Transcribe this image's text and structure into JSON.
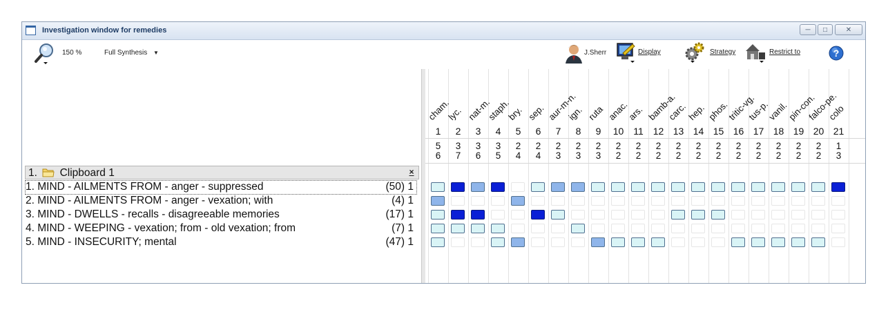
{
  "window": {
    "title": "Investigation window for remedies"
  },
  "title_buttons": [
    "minimize",
    "maximize",
    "close"
  ],
  "toolbar": {
    "zoom": "150 %",
    "view_mode": "Full Synthesis",
    "author": "J.Sherr",
    "display": "Display",
    "strategy": "Strategy",
    "restrict": "Restrict to"
  },
  "clipboard": {
    "title": "Clipboard 1",
    "index": "1.",
    "close": "×"
  },
  "rubrics": [
    {
      "label": "1. MIND - AILMENTS FROM - anger - suppressed",
      "count": "(50) 1"
    },
    {
      "label": "2. MIND - AILMENTS FROM - anger - vexation; with",
      "count": "(4) 1"
    },
    {
      "label": "3. MIND - DWELLS - recalls - disagreeable memories",
      "count": "(17) 1"
    },
    {
      "label": "4. MIND - WEEPING - vexation; from - old vexation; from",
      "count": "(7) 1"
    },
    {
      "label": "5. MIND - INSECURITY; mental",
      "count": "(47) 1"
    }
  ],
  "remedies": [
    {
      "name": "cham.",
      "num": "1",
      "score": "5",
      "rubrics": "6"
    },
    {
      "name": "lyc.",
      "num": "2",
      "score": "3",
      "rubrics": "7"
    },
    {
      "name": "nat-m.",
      "num": "3",
      "score": "3",
      "rubrics": "6"
    },
    {
      "name": "staph.",
      "num": "4",
      "score": "3",
      "rubrics": "5"
    },
    {
      "name": "bry.",
      "num": "5",
      "score": "2",
      "rubrics": "4"
    },
    {
      "name": "sep.",
      "num": "6",
      "score": "2",
      "rubrics": "4"
    },
    {
      "name": "aur-m-n.",
      "num": "7",
      "score": "2",
      "rubrics": "3"
    },
    {
      "name": "ign.",
      "num": "8",
      "score": "2",
      "rubrics": "3"
    },
    {
      "name": "ruta",
      "num": "9",
      "score": "2",
      "rubrics": "3"
    },
    {
      "name": "anac.",
      "num": "10",
      "score": "2",
      "rubrics": "2"
    },
    {
      "name": "ars.",
      "num": "11",
      "score": "2",
      "rubrics": "2"
    },
    {
      "name": "bamb-a.",
      "num": "12",
      "score": "2",
      "rubrics": "2"
    },
    {
      "name": "carc.",
      "num": "13",
      "score": "2",
      "rubrics": "2"
    },
    {
      "name": "hep.",
      "num": "14",
      "score": "2",
      "rubrics": "2"
    },
    {
      "name": "phos.",
      "num": "15",
      "score": "2",
      "rubrics": "2"
    },
    {
      "name": "tritic-vg.",
      "num": "16",
      "score": "2",
      "rubrics": "2"
    },
    {
      "name": "tus-p.",
      "num": "17",
      "score": "2",
      "rubrics": "2"
    },
    {
      "name": "vanil.",
      "num": "18",
      "score": "2",
      "rubrics": "2"
    },
    {
      "name": "pin-con.",
      "num": "19",
      "score": "2",
      "rubrics": "2"
    },
    {
      "name": "falco-pe.",
      "num": "20",
      "score": "2",
      "rubrics": "2"
    },
    {
      "name": "colo",
      "num": "21",
      "score": "1",
      "rubrics": "3"
    }
  ],
  "grades": [
    [
      1,
      3,
      2,
      3,
      0,
      1,
      2,
      2,
      1,
      1,
      1,
      1,
      1,
      1,
      1,
      1,
      1,
      1,
      1,
      1,
      3
    ],
    [
      2,
      0,
      0,
      0,
      2,
      0,
      0,
      0,
      0,
      0,
      0,
      0,
      0,
      0,
      0,
      0,
      0,
      0,
      0,
      0,
      0
    ],
    [
      1,
      3,
      3,
      0,
      0,
      3,
      1,
      0,
      0,
      0,
      0,
      0,
      1,
      1,
      1,
      0,
      0,
      0,
      0,
      0,
      0
    ],
    [
      1,
      1,
      1,
      1,
      0,
      0,
      0,
      1,
      0,
      0,
      0,
      0,
      0,
      0,
      0,
      0,
      0,
      0,
      0,
      0,
      0
    ],
    [
      1,
      0,
      0,
      1,
      2,
      0,
      0,
      0,
      2,
      1,
      1,
      1,
      0,
      0,
      0,
      1,
      1,
      1,
      1,
      1,
      0
    ]
  ],
  "grade_colors": {
    "1": "#d9f4f6",
    "2": "#8fb5ea",
    "3": "#0a1fd6"
  }
}
